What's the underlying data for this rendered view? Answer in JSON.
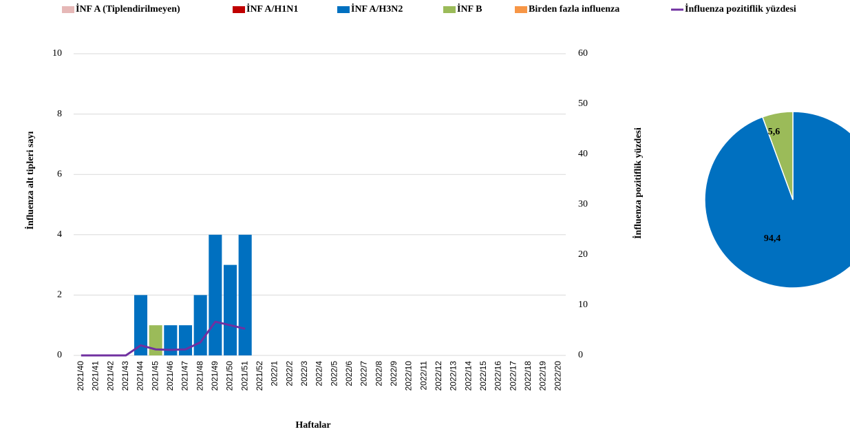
{
  "chart_data": [
    {
      "type": "bar",
      "x_label": "Haftalar",
      "y_label": "İnfluenza alt tipleri sayı",
      "y2_label": "İnfluenza pozitiflik yüzdesi",
      "categories": [
        "2021/40",
        "2021/41",
        "2021/42",
        "2021/43",
        "2021/44",
        "2021/45",
        "2021/46",
        "2021/47",
        "2021/48",
        "2021/49",
        "2021/50",
        "2021/51",
        "2021/52",
        "2022/1",
        "2022/2",
        "2022/3",
        "2022/4",
        "2022/5",
        "2022/6",
        "2022/7",
        "2022/8",
        "2022/9",
        "2022/10",
        "2022/11",
        "2022/12",
        "2022/13",
        "2022/14",
        "2022/15",
        "2022/16",
        "2022/17",
        "2022/18",
        "2022/19",
        "2022/20"
      ],
      "series": [
        {
          "name": "İNF A (Tiplendirilmeyen)",
          "color": "#e6b8b7",
          "values": [
            0,
            0,
            0,
            0,
            0,
            0,
            0,
            0,
            0,
            0,
            0,
            0,
            null,
            null,
            null,
            null,
            null,
            null,
            null,
            null,
            null,
            null,
            null,
            null,
            null,
            null,
            null,
            null,
            null,
            null,
            null,
            null,
            null
          ]
        },
        {
          "name": "İNF A/H1N1",
          "color": "#c00000",
          "values": [
            0,
            0,
            0,
            0,
            0,
            0,
            0,
            0,
            0,
            0,
            0,
            0,
            null,
            null,
            null,
            null,
            null,
            null,
            null,
            null,
            null,
            null,
            null,
            null,
            null,
            null,
            null,
            null,
            null,
            null,
            null,
            null,
            null
          ]
        },
        {
          "name": "İNF A/H3N2",
          "color": "#0070c0",
          "values": [
            0,
            0,
            0,
            0,
            2,
            0,
            1,
            1,
            2,
            4,
            3,
            4,
            null,
            null,
            null,
            null,
            null,
            null,
            null,
            null,
            null,
            null,
            null,
            null,
            null,
            null,
            null,
            null,
            null,
            null,
            null,
            null,
            null
          ]
        },
        {
          "name": "İNF B",
          "color": "#9bbb59",
          "values": [
            0,
            0,
            0,
            0,
            0,
            1,
            0,
            0,
            0,
            0,
            0,
            0,
            null,
            null,
            null,
            null,
            null,
            null,
            null,
            null,
            null,
            null,
            null,
            null,
            null,
            null,
            null,
            null,
            null,
            null,
            null,
            null,
            null
          ]
        },
        {
          "name": "Birden fazla influenza",
          "color": "#f79646",
          "values": [
            0,
            0,
            0,
            0,
            0,
            0,
            0,
            0,
            0,
            0,
            0,
            0,
            null,
            null,
            null,
            null,
            null,
            null,
            null,
            null,
            null,
            null,
            null,
            null,
            null,
            null,
            null,
            null,
            null,
            null,
            null,
            null,
            null
          ]
        },
        {
          "name": "İnfluenza pozitiflik yüzdesi",
          "color": "#7030a0",
          "type": "line",
          "axis": "y2",
          "values": [
            0,
            0,
            0,
            0,
            2.0,
            1.2,
            1.1,
            1.2,
            2.6,
            6.7,
            6.0,
            5.3,
            null,
            null,
            null,
            null,
            null,
            null,
            null,
            null,
            null,
            null,
            null,
            null,
            null,
            null,
            null,
            null,
            null,
            null,
            null,
            null,
            null
          ]
        }
      ],
      "ylim": [
        0,
        10
      ],
      "yticks": [
        0,
        2,
        4,
        6,
        8,
        10
      ],
      "y2lim": [
        0,
        60
      ],
      "y2ticks": [
        0,
        10,
        20,
        30,
        40,
        50,
        60
      ],
      "grid": true,
      "legend": "top"
    },
    {
      "type": "pie",
      "values": [
        94.4,
        5.6
      ],
      "value_labels": [
        "94,4",
        "5,6"
      ],
      "colors": [
        "#0070c0",
        "#9bbb59"
      ]
    }
  ]
}
